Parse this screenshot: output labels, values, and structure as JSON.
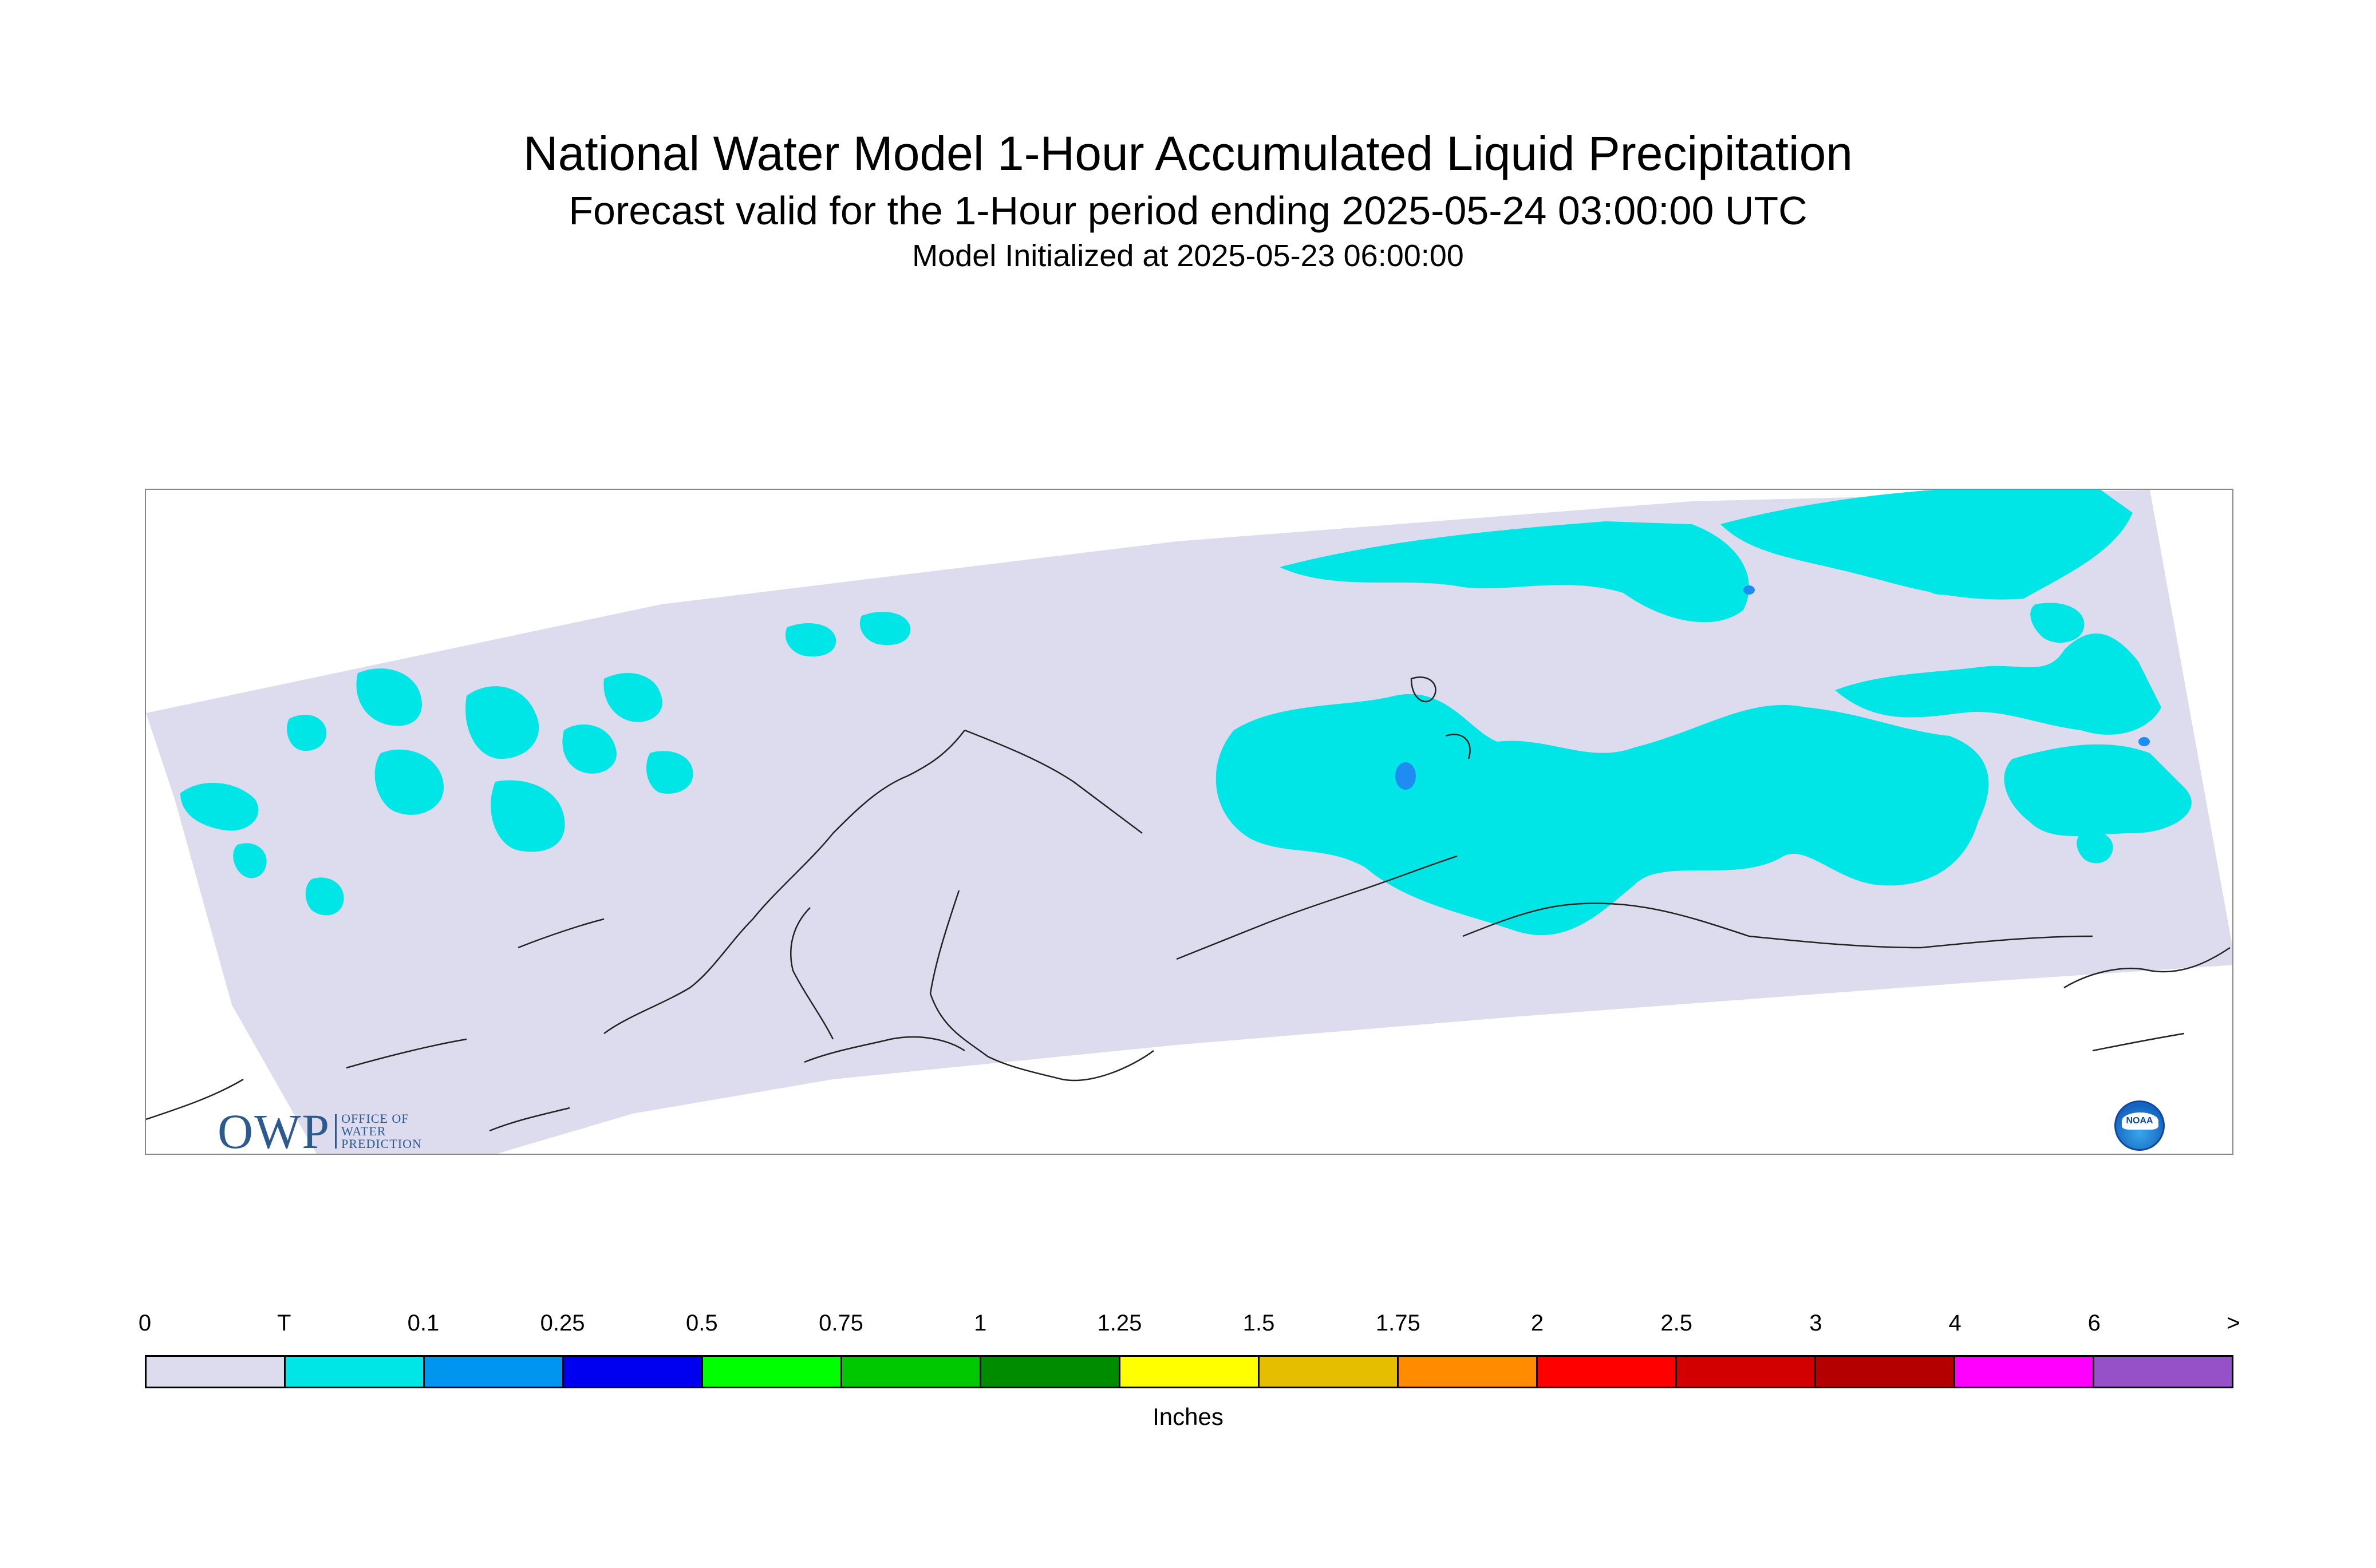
{
  "title": "National Water Model 1-Hour Accumulated Liquid Precipitation",
  "subtitle": "Forecast valid for the 1-Hour period ending 2025-05-24 03:00:00 UTC",
  "init_line": "Model Initialized at 2025-05-23 06:00:00",
  "map": {
    "domain_color": "#dcdcee",
    "precip_color": "#00e5e5",
    "precip_heavier_color": "#1e8cf0",
    "coastline_color": "#222222"
  },
  "logos": {
    "owp": {
      "big": "OWP",
      "small_lines": [
        "OFFICE OF",
        "WATER",
        "PREDICTION"
      ]
    },
    "noaa": {
      "text": "NOAA"
    }
  },
  "legend": {
    "labels": [
      "0",
      "T",
      "0.1",
      "0.25",
      "0.5",
      "0.75",
      "1",
      "1.25",
      "1.5",
      "1.75",
      "2",
      "2.5",
      "3",
      "4",
      "6",
      ">"
    ],
    "colors": [
      "#dcdcee",
      "#00e5e5",
      "#0096f0",
      "#0000f0",
      "#00ff00",
      "#00c800",
      "#008c00",
      "#ffff00",
      "#e6be00",
      "#ff8c00",
      "#ff0000",
      "#d20000",
      "#b40000",
      "#ff00ff",
      "#9650c8"
    ],
    "units": "Inches"
  }
}
